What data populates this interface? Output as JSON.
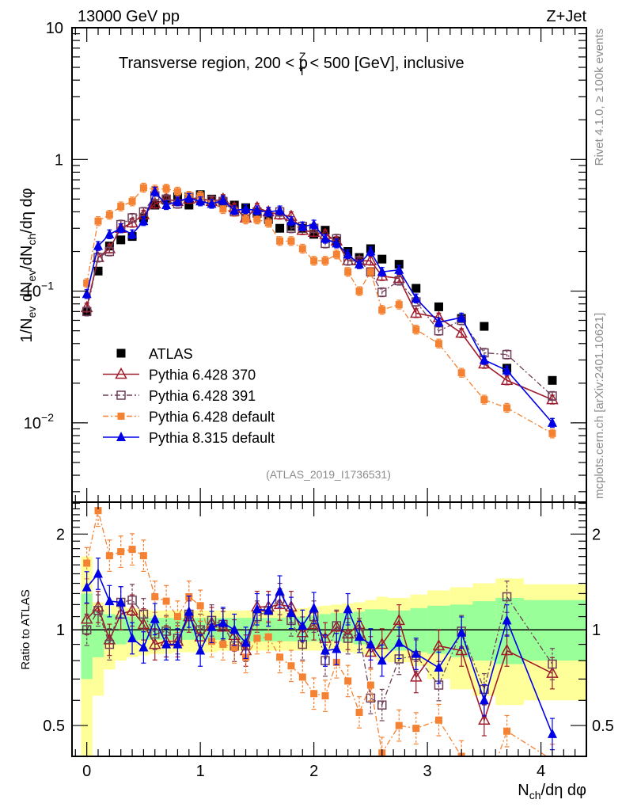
{
  "header": {
    "left_label": "13000 GeV pp",
    "right_label": "Z+Jet"
  },
  "side_labels": {
    "rivet": "Rivet 4.1.0, ≥ 100k events",
    "mcplots": "mcplots.cern.ch [arXiv:2401.10621]"
  },
  "chart_data": [
    {
      "type": "scatter",
      "panel": "main",
      "title": "Transverse region, 200 < pT^Z < 500 [GeV], inclusive",
      "title_parts": {
        "pre": "Transverse region, 200 < p",
        "sup": "Z",
        "sub": "T",
        "post": " < 500 [GeV], inclusive"
      },
      "xlabel": "Nch/dη dφ",
      "ylabel": "1/Nev dNev/dNch/dη dφ",
      "ylabel_parts": {
        "a": "1/N",
        "a_sub": "ev",
        "b": " dN",
        "b_sub": "ev",
        "c": "/dN",
        "c_sub": "ch",
        "d": "/dη dφ"
      },
      "xlim": [
        -0.13,
        4.4
      ],
      "ylim": [
        0.0025,
        10
      ],
      "yscale": "log",
      "ytick_labels": [
        {
          "value": 10,
          "label": "10"
        },
        {
          "value": 1,
          "label": "1"
        },
        {
          "value": 0.1,
          "label": "10",
          "exp": "−1"
        },
        {
          "value": 0.01,
          "label": "10",
          "exp": "−2"
        }
      ],
      "annotation": "(ATLAS_2019_I1736531)",
      "legend_position": "lower-left",
      "x": [
        0.0,
        0.1,
        0.2,
        0.3,
        0.4,
        0.5,
        0.6,
        0.7,
        0.8,
        0.9,
        1.0,
        1.1,
        1.2,
        1.3,
        1.4,
        1.5,
        1.6,
        1.7,
        1.8,
        1.9,
        2.0,
        2.1,
        2.2,
        2.3,
        2.4,
        2.5,
        2.6,
        2.75,
        2.9,
        3.1,
        3.3,
        3.5,
        3.7,
        4.1
      ],
      "series": [
        {
          "name": "ATLAS",
          "key": "atlas",
          "color": "#000000",
          "marker": "square-filled",
          "line": "none",
          "values": [
            0.07,
            0.142,
            0.22,
            0.245,
            0.26,
            0.36,
            0.45,
            0.49,
            0.52,
            0.45,
            0.54,
            0.5,
            0.47,
            0.45,
            0.43,
            0.4,
            0.35,
            0.3,
            0.31,
            0.3,
            0.27,
            0.29,
            0.24,
            0.2,
            0.18,
            0.21,
            0.175,
            0.16,
            0.105,
            0.076,
            0.062,
            0.054,
            0.026,
            0.021
          ]
        },
        {
          "name": "Pythia 6.428 370",
          "key": "p370",
          "color": "#a01c2c",
          "marker": "triangle-open",
          "line": "solid",
          "values": [
            0.075,
            0.18,
            0.21,
            0.3,
            0.33,
            0.38,
            0.46,
            0.5,
            0.48,
            0.5,
            0.51,
            0.48,
            0.5,
            0.43,
            0.36,
            0.43,
            0.4,
            0.38,
            0.37,
            0.29,
            0.28,
            0.27,
            0.24,
            0.17,
            0.17,
            0.17,
            0.13,
            0.125,
            0.068,
            0.063,
            0.048,
            0.028,
            0.021,
            0.015
          ]
        },
        {
          "name": "Pythia 6.428 391",
          "key": "p391",
          "color": "#6e3e58",
          "marker": "square-open",
          "line": "dashdot",
          "values": [
            0.07,
            0.18,
            0.2,
            0.32,
            0.36,
            0.4,
            0.53,
            0.5,
            0.46,
            0.52,
            0.5,
            0.49,
            0.48,
            0.4,
            0.38,
            0.39,
            0.36,
            0.4,
            0.3,
            0.31,
            0.3,
            0.23,
            0.25,
            0.17,
            0.17,
            0.14,
            0.098,
            0.12,
            0.083,
            0.05,
            0.06,
            0.034,
            0.033,
            0.016
          ]
        },
        {
          "name": "Pythia 6.428 default",
          "key": "p6def",
          "color": "#f48232",
          "marker": "square-filled-small",
          "line": "dashdot",
          "values": [
            0.115,
            0.34,
            0.38,
            0.44,
            0.48,
            0.61,
            0.59,
            0.6,
            0.57,
            0.53,
            0.53,
            0.46,
            0.42,
            0.4,
            0.35,
            0.35,
            0.33,
            0.24,
            0.24,
            0.21,
            0.17,
            0.17,
            0.19,
            0.14,
            0.1,
            0.14,
            0.072,
            0.079,
            0.051,
            0.04,
            0.024,
            0.015,
            0.013,
            0.0083
          ]
        },
        {
          "name": "Pythia 8.315 default",
          "key": "p8def",
          "color": "#0000e6",
          "marker": "triangle-filled",
          "line": "solid",
          "values": [
            0.095,
            0.22,
            0.27,
            0.3,
            0.27,
            0.34,
            0.57,
            0.45,
            0.48,
            0.51,
            0.48,
            0.46,
            0.49,
            0.41,
            0.42,
            0.41,
            0.4,
            0.41,
            0.34,
            0.31,
            0.32,
            0.25,
            0.23,
            0.19,
            0.16,
            0.2,
            0.14,
            0.145,
            0.088,
            0.058,
            0.063,
            0.03,
            0.025,
            0.01
          ]
        }
      ]
    },
    {
      "type": "scatter",
      "panel": "ratio",
      "ylabel": "Ratio to ATLAS",
      "xlabel": "Nch/dη dφ",
      "xlim": [
        -0.13,
        4.4
      ],
      "ylim": [
        0.4,
        2.52
      ],
      "yscale": "log",
      "ytick_labels": [
        {
          "value": 2,
          "label": "2"
        },
        {
          "value": 1,
          "label": "1"
        },
        {
          "value": 0.5,
          "label": "0.5"
        }
      ],
      "xtick_labels": [
        {
          "value": 0,
          "label": "0"
        },
        {
          "value": 1,
          "label": "1"
        },
        {
          "value": 2,
          "label": "2"
        },
        {
          "value": 3,
          "label": "3"
        },
        {
          "value": 4,
          "label": "4"
        }
      ],
      "reference_line": 1,
      "bands": {
        "bin_edges": [
          -0.05,
          0.05,
          0.15,
          0.25,
          0.35,
          0.45,
          0.55,
          0.65,
          0.75,
          0.85,
          0.95,
          1.05,
          1.15,
          1.25,
          1.35,
          1.45,
          1.55,
          1.65,
          1.75,
          1.85,
          1.95,
          2.05,
          2.15,
          2.25,
          2.35,
          2.45,
          2.55,
          2.65,
          2.85,
          3.0,
          3.2,
          3.4,
          3.6,
          3.85,
          4.4
        ],
        "inner": {
          "color": "#99ff99",
          "lo": [
            0.7,
            0.82,
            0.9,
            0.9,
            0.92,
            0.93,
            0.93,
            0.93,
            0.93,
            0.93,
            0.93,
            0.93,
            0.93,
            0.93,
            0.92,
            0.92,
            0.92,
            0.92,
            0.92,
            0.92,
            0.92,
            0.92,
            0.92,
            0.91,
            0.9,
            0.89,
            0.87,
            0.86,
            0.85,
            0.84,
            0.82,
            0.8,
            0.78,
            0.8
          ],
          "hi": [
            1.3,
            1.15,
            1.12,
            1.11,
            1.1,
            1.1,
            1.09,
            1.09,
            1.09,
            1.09,
            1.09,
            1.09,
            1.09,
            1.09,
            1.09,
            1.09,
            1.09,
            1.09,
            1.1,
            1.1,
            1.11,
            1.12,
            1.13,
            1.13,
            1.14,
            1.16,
            1.16,
            1.15,
            1.17,
            1.19,
            1.2,
            1.23,
            1.26,
            1.24
          ]
        },
        "outer": {
          "color": "#ffff99",
          "lo": [
            0.3,
            0.62,
            0.75,
            0.8,
            0.82,
            0.83,
            0.84,
            0.84,
            0.85,
            0.85,
            0.85,
            0.85,
            0.86,
            0.86,
            0.86,
            0.86,
            0.86,
            0.86,
            0.86,
            0.86,
            0.86,
            0.86,
            0.86,
            0.85,
            0.84,
            0.83,
            0.8,
            0.79,
            0.77,
            0.7,
            0.65,
            0.62,
            0.58,
            0.6
          ],
          "hi": [
            1.7,
            1.22,
            1.19,
            1.18,
            1.17,
            1.16,
            1.15,
            1.15,
            1.15,
            1.15,
            1.15,
            1.15,
            1.15,
            1.15,
            1.15,
            1.15,
            1.15,
            1.15,
            1.16,
            1.17,
            1.18,
            1.19,
            1.2,
            1.21,
            1.22,
            1.24,
            1.27,
            1.26,
            1.29,
            1.33,
            1.36,
            1.4,
            1.45,
            1.39
          ]
        }
      },
      "series": [
        {
          "key": "p370",
          "values": [
            1.08,
            1.18,
            0.93,
            1.12,
            1.15,
            1.04,
            0.9,
            0.92,
            0.92,
            1.1,
            0.95,
            1.05,
            1.02,
            0.96,
            0.86,
            1.18,
            1.18,
            1.2,
            1.18,
            0.98,
            1.04,
            0.94,
            1.02,
            0.97,
            1.04,
            0.85,
            0.9,
            1.07,
            0.71,
            0.89,
            0.86,
            0.52,
            0.86,
            0.73
          ]
        },
        {
          "key": "p391",
          "values": [
            1.0,
            1.15,
            0.9,
            1.22,
            1.24,
            1.12,
            0.97,
            0.99,
            0.94,
            1.12,
            1.0,
            1.07,
            1.04,
            0.89,
            0.89,
            1.1,
            1.15,
            1.25,
            1.07,
            0.9,
            1.1,
            0.8,
            1.03,
            0.94,
            0.97,
            0.61,
            0.58,
            0.81,
            0.83,
            0.67,
            0.99,
            0.65,
            1.27,
            0.78
          ]
        },
        {
          "key": "p6def",
          "values": [
            1.62,
            2.37,
            1.71,
            1.76,
            1.79,
            1.71,
            1.27,
            1.23,
            1.1,
            1.27,
            1.19,
            0.92,
            0.9,
            0.88,
            0.82,
            0.94,
            0.95,
            0.82,
            0.77,
            0.71,
            0.63,
            0.62,
            0.79,
            0.69,
            0.55,
            0.67,
            0.41,
            0.5,
            0.49,
            0.52,
            0.4,
            0.3,
            0.48,
            0.39
          ]
        },
        {
          "key": "p8def",
          "values": [
            1.36,
            1.5,
            1.23,
            1.22,
            0.94,
            0.88,
            1.08,
            0.9,
            0.9,
            1.14,
            0.86,
            1.02,
            1.05,
            1.0,
            0.91,
            1.16,
            1.15,
            1.32,
            1.13,
            1.03,
            1.17,
            0.86,
            0.87,
            1.16,
            0.95,
            0.9,
            0.8,
            0.91,
            0.84,
            0.76,
            0.98,
            0.6,
            1.07,
            0.47
          ]
        }
      ]
    }
  ]
}
